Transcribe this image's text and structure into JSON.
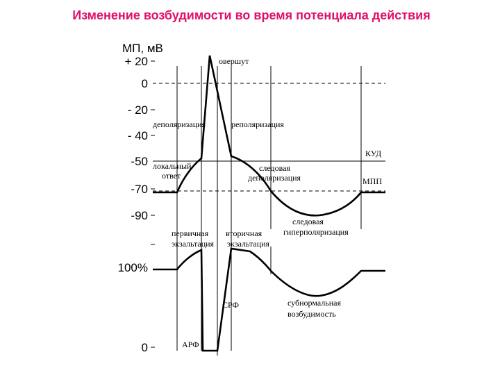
{
  "header": {
    "title": "Изменение возбудимости во время потенциала действия"
  },
  "membrane_chart": {
    "axis_label": "МП, мВ",
    "tick_labels": [
      "+ 20",
      "0",
      "- 20",
      "- 40",
      "-50",
      "-70",
      "-90"
    ],
    "labels": [
      "овершут",
      "деполяризация",
      "реполяризация",
      "КУД",
      "локальный",
      "ответ",
      "следовая",
      "деполяризация",
      "МПП",
      "следовая",
      "гиперполяризация"
    ]
  },
  "excitability_chart": {
    "tick_labels": [
      "100%",
      "0"
    ],
    "labels": [
      "первичная",
      "экзальтация",
      "вторичная",
      "экзальтация",
      "СРФ",
      "субнормальная",
      "возбудимость",
      "АРФ"
    ]
  }
}
